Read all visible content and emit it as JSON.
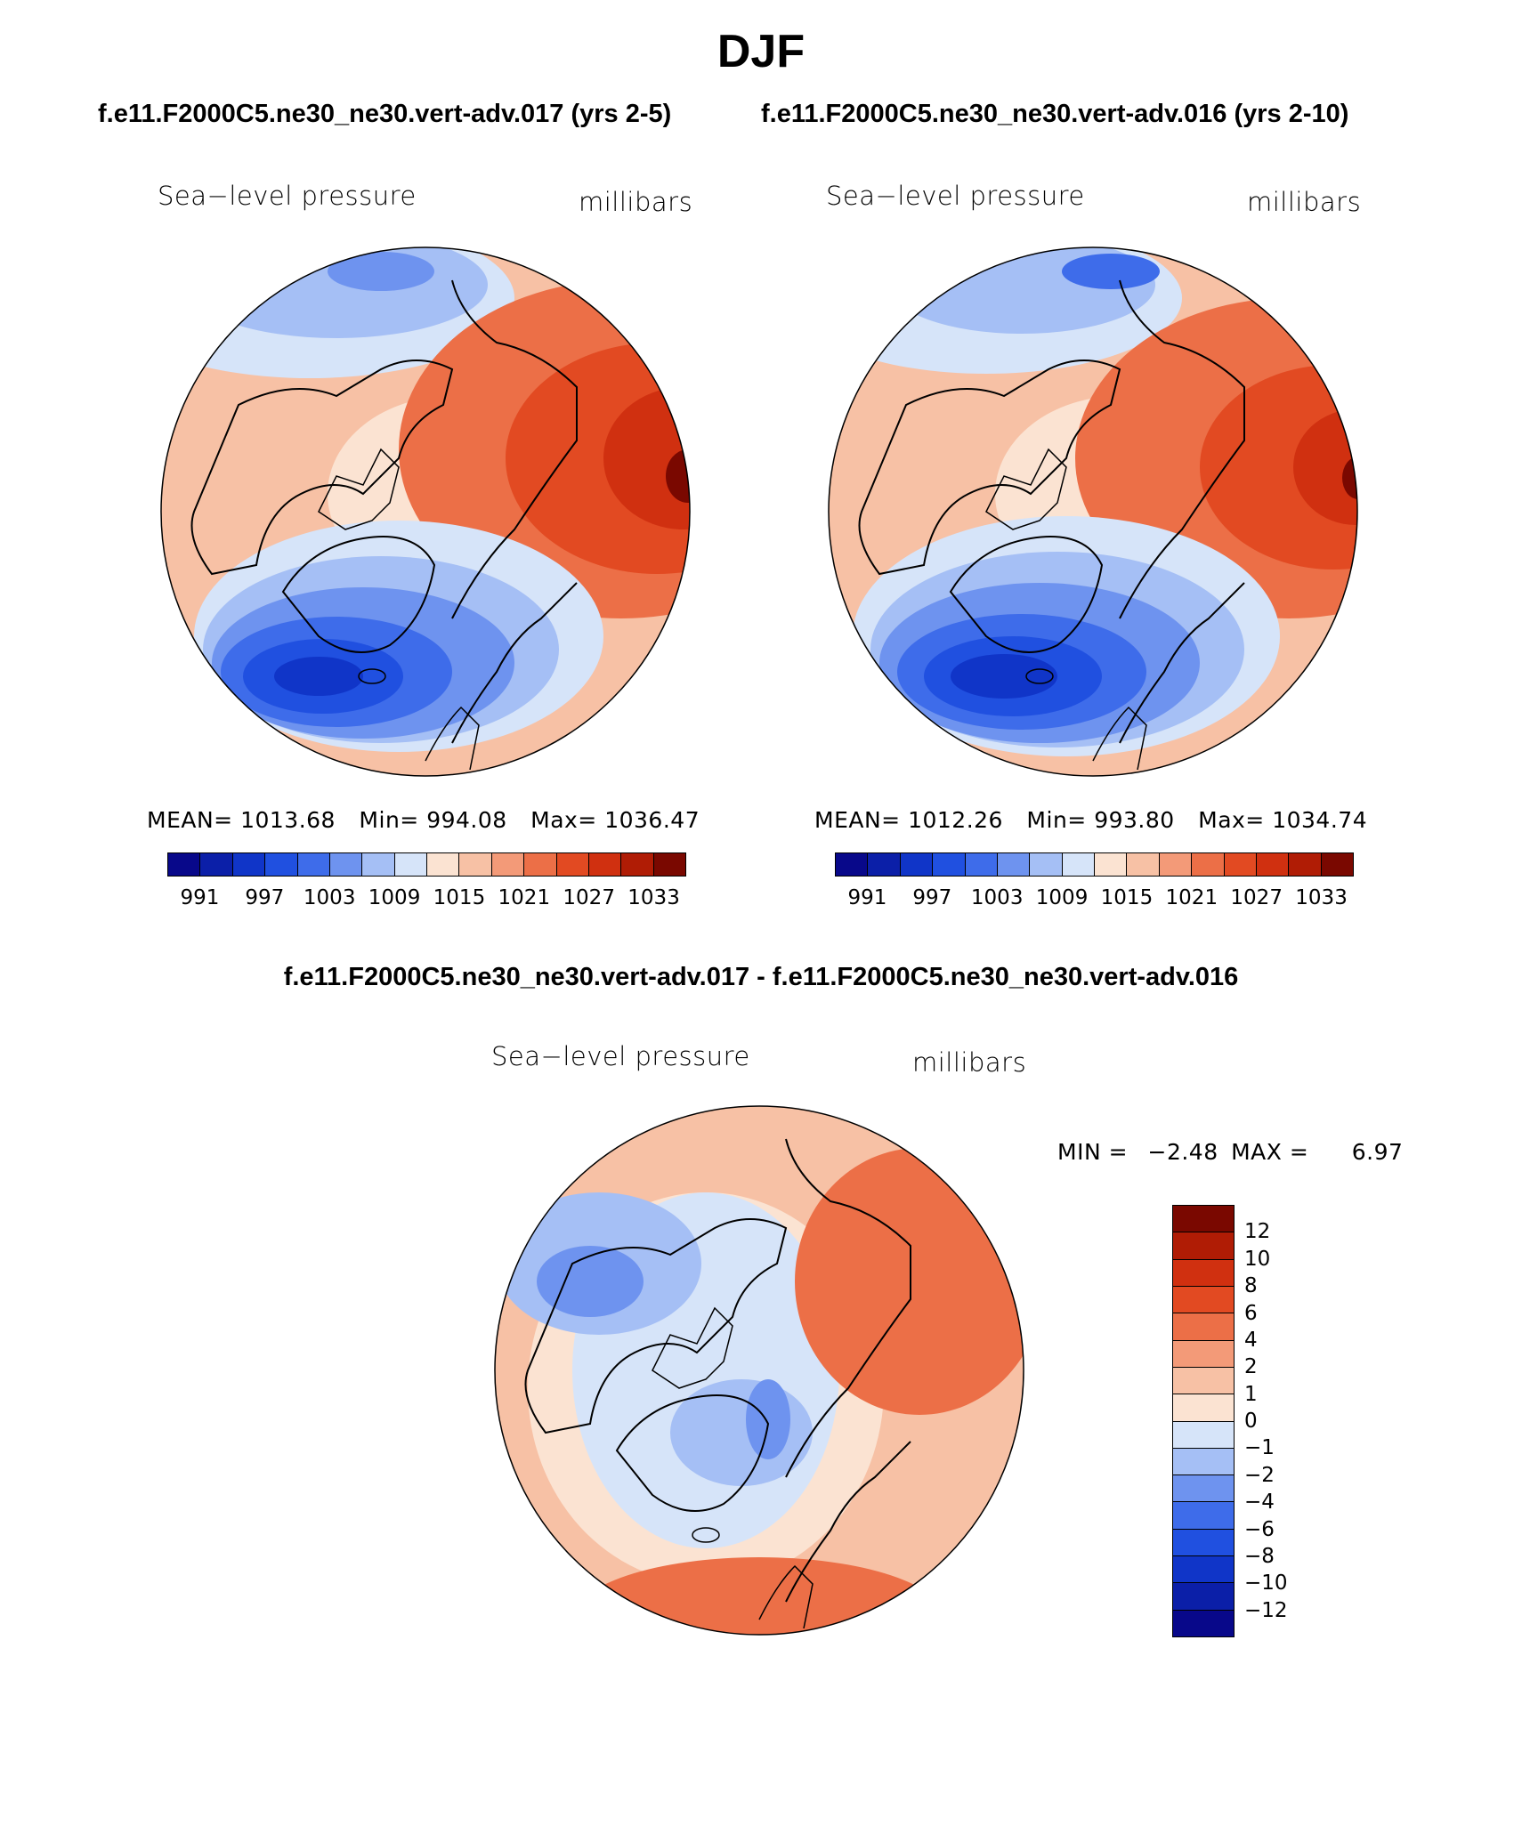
{
  "figure": {
    "title": "DJF",
    "header_left": "f.e11.F2000C5.ne30_ne30.vert-adv.017 (yrs 2-5)",
    "header_right": "f.e11.F2000C5.ne30_ne30.vert-adv.016 (yrs 2-10)",
    "diff_header": "f.e11.F2000C5.ne30_ne30.vert-adv.017 - f.e11.F2000C5.ne30_ne30.vert-adv.016"
  },
  "panels": [
    {
      "variable": "Sea−level pressure",
      "units": "millibars",
      "stats": {
        "mean_label": "MEAN=",
        "mean": "1013.68",
        "min_label": "Min=",
        "min": "994.08",
        "max_label": "Max=",
        "max": "1036.47"
      }
    },
    {
      "variable": "Sea−level pressure",
      "units": "millibars",
      "stats": {
        "mean_label": "MEAN=",
        "mean": "1012.26",
        "min_label": "Min=",
        "min": "993.80",
        "max_label": "Max=",
        "max": "1034.74"
      }
    },
    {
      "variable": "Sea−level pressure",
      "units": "millibars",
      "stats": {
        "min_label": "MIN =",
        "min": "−2.48",
        "max_label": "MAX =",
        "max": "6.97"
      }
    }
  ],
  "colorbar_abs": {
    "ticks": [
      "991",
      "997",
      "1003",
      "1009",
      "1015",
      "1021",
      "1027",
      "1033"
    ],
    "colors": [
      "#08088a",
      "#0b1fa8",
      "#1035c8",
      "#2050e0",
      "#3e6cea",
      "#6e93ef",
      "#a5bff5",
      "#d6e4f9",
      "#fbe3d2",
      "#f7c1a5",
      "#f39a78",
      "#ec6f47",
      "#e24a22",
      "#d03010",
      "#b01c05",
      "#7a0800"
    ]
  },
  "colorbar_diff": {
    "ticks": [
      "12",
      "10",
      "8",
      "6",
      "4",
      "2",
      "1",
      "0",
      "−1",
      "−2",
      "−4",
      "−6",
      "−8",
      "−10",
      "−12"
    ],
    "colors": [
      "#7a0800",
      "#b01c05",
      "#d03010",
      "#e24a22",
      "#ec6f47",
      "#f39a78",
      "#f7c1a5",
      "#fbe3d2",
      "#d6e4f9",
      "#a5bff5",
      "#6e93ef",
      "#3e6cea",
      "#2050e0",
      "#1035c8",
      "#0b1fa8",
      "#08088a"
    ]
  },
  "map_layers": {
    "panel1_colors": {
      "background": "#f7c1a5",
      "blue_mid": "#a5bff5",
      "blue_deep": "#2050e0",
      "blue_core": "#0b1fa8",
      "red_mid": "#ec6f47",
      "red_deep": "#d03010",
      "red_core": "#7a0800"
    },
    "panel2_colors": {
      "background": "#f7c1a5",
      "blue_mid": "#a5bff5",
      "blue_deep": "#2050e0",
      "blue_core": "#0b1fa8",
      "red_mid": "#ec6f47",
      "red_deep": "#d03010",
      "red_core": "#7a0800"
    },
    "panel3_colors": {
      "background": "#f7c1a5",
      "light": "#fbe3d2",
      "pale_blue": "#d6e4f9",
      "blue": "#a5bff5",
      "blue_mid": "#6e93ef",
      "orange": "#ec6f47"
    }
  }
}
